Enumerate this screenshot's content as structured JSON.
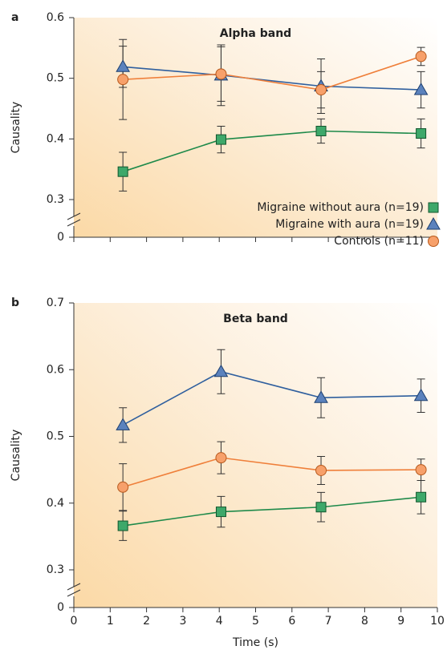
{
  "chart_data": [
    {
      "type": "line",
      "panel_label": "a",
      "title": "Alpha band",
      "ylabel": "Causality",
      "axis_break": true,
      "legend": "lower right",
      "show_xtick_labels": false,
      "x": [
        1.35,
        4.05,
        6.8,
        9.55
      ],
      "xlim": [
        0,
        10
      ],
      "xticks": [
        0,
        1,
        2,
        3,
        4,
        5,
        6,
        7,
        8,
        9,
        10
      ],
      "ylim": [
        0,
        0.6
      ],
      "yticks": [
        0,
        0.3,
        0.4,
        0.5,
        0.6
      ],
      "series": [
        {
          "name": "Migraine without aura (n=19)",
          "color": "#1e8a4a",
          "marker": "square",
          "values": [
            0.346,
            0.399,
            0.413,
            0.409
          ],
          "errors": [
            0.032,
            0.022,
            0.02,
            0.024
          ]
        },
        {
          "name": "Migraine with aura (n=19)",
          "color": "#2f5f9e",
          "marker": "triangle",
          "values": [
            0.519,
            0.505,
            0.487,
            0.481
          ],
          "errors": [
            0.034,
            0.05,
            0.045,
            0.03
          ]
        },
        {
          "name": "Controls (n=11)",
          "color": "#ef7f3a",
          "marker": "circle",
          "values": [
            0.498,
            0.507,
            0.481,
            0.536
          ],
          "errors": [
            0.066,
            0.045,
            0.03,
            0.015
          ]
        }
      ]
    },
    {
      "type": "line",
      "panel_label": "b",
      "title": "Beta band",
      "ylabel": "Causality",
      "xlabel": "Time (s)",
      "axis_break": true,
      "show_xtick_labels": true,
      "x": [
        1.35,
        4.05,
        6.8,
        9.55
      ],
      "xlim": [
        0,
        10
      ],
      "xticks": [
        0,
        1,
        2,
        3,
        4,
        5,
        6,
        7,
        8,
        9,
        10
      ],
      "ylim": [
        0,
        0.7
      ],
      "yticks": [
        0,
        0.3,
        0.4,
        0.5,
        0.6,
        0.7
      ],
      "series": [
        {
          "name": "Migraine without aura (n=19)",
          "color": "#1e8a4a",
          "marker": "square",
          "values": [
            0.366,
            0.387,
            0.394,
            0.409
          ],
          "errors": [
            0.022,
            0.023,
            0.022,
            0.025
          ]
        },
        {
          "name": "Migraine with aura (n=19)",
          "color": "#2f5f9e",
          "marker": "triangle",
          "values": [
            0.517,
            0.597,
            0.558,
            0.561
          ],
          "errors": [
            0.026,
            0.033,
            0.03,
            0.025
          ]
        },
        {
          "name": "Controls (n=11)",
          "color": "#ef7f3a",
          "marker": "circle",
          "values": [
            0.424,
            0.468,
            0.449,
            0.45
          ],
          "errors": [
            0.035,
            0.024,
            0.021,
            0.016
          ]
        }
      ]
    }
  ]
}
